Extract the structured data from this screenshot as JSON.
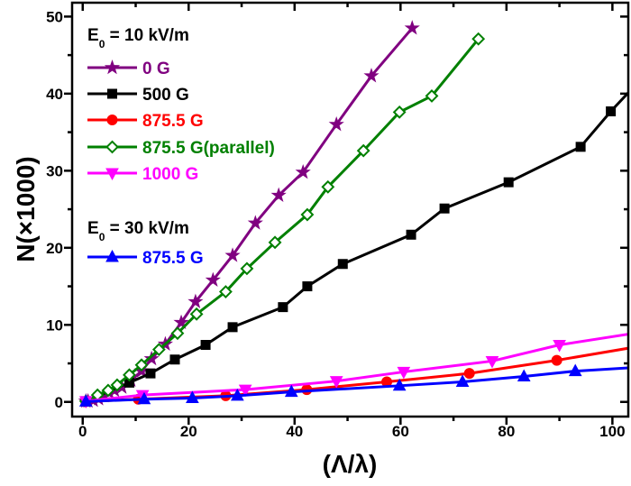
{
  "chart_data": {
    "type": "line",
    "xlabel": "(Λ/λ)",
    "ylabel": "N(×1000)",
    "xlim": [
      -2,
      103
    ],
    "ylim": [
      -1.9,
      51.8
    ],
    "xticks": [
      0,
      20,
      40,
      60,
      80,
      100
    ],
    "yticks": [
      0,
      10,
      20,
      30,
      40,
      50
    ],
    "grid": false,
    "legend_position": "top-left",
    "legend_groups": [
      {
        "title_main": "E",
        "title_sub": "0",
        "title_rest": " = 10 kV/m",
        "series_indices": [
          0,
          1,
          2,
          3,
          4
        ]
      },
      {
        "title_main": "E",
        "title_sub": "0",
        "title_rest": " = 30 kV/m",
        "series_indices": [
          5
        ]
      }
    ],
    "series": [
      {
        "name": "0 G",
        "color": "#800080",
        "marker": "star",
        "filled": true,
        "x": [
          0.6,
          1,
          2,
          3,
          4,
          5,
          6,
          7.4,
          9.1,
          11.1,
          13.0,
          15.6,
          18.6,
          21.3,
          24.6,
          28.3,
          32.6,
          37.0,
          41.6,
          47.9,
          54.5,
          62.2
        ],
        "y": [
          0.1,
          0.1,
          0.2,
          0.4,
          0.8,
          1.2,
          1.5,
          1.9,
          2.8,
          4.0,
          5.6,
          7.5,
          10.3,
          13.0,
          15.8,
          19.0,
          23.2,
          26.8,
          29.8,
          36.0,
          42.3,
          48.5
        ]
      },
      {
        "name": "500 G",
        "color": "#000000",
        "marker": "square",
        "filled": true,
        "x": [
          0.6,
          8.8,
          12.8,
          17.4,
          23.2,
          28.3,
          37.8,
          42.4,
          49.1,
          62.0,
          68.3,
          80.4,
          94.0,
          99.7,
          105
        ],
        "y": [
          0.1,
          2.5,
          3.7,
          5.5,
          7.4,
          9.7,
          12.3,
          15.0,
          17.9,
          21.7,
          25.1,
          28.5,
          33.1,
          37.7,
          41.6
        ]
      },
      {
        "name": "875.5 G",
        "color": "#ff0000",
        "marker": "circle",
        "filled": true,
        "x": [
          0.6,
          10.5,
          27.0,
          42.3,
          57.4,
          73.0,
          89.5,
          105
        ],
        "y": [
          0.05,
          0.35,
          0.8,
          1.6,
          2.6,
          3.7,
          5.4,
          7.2
        ]
      },
      {
        "name": "875.5 G(parallel)",
        "color": "#008000",
        "marker": "diamond",
        "filled": false,
        "x": [
          0.6,
          2.8,
          4.8,
          6.5,
          8.8,
          11.1,
          14.4,
          17.9,
          21.5,
          27.0,
          31.0,
          36.3,
          42.4,
          46.3,
          53.0,
          59.8,
          65.9,
          74.7
        ],
        "y": [
          0.1,
          0.9,
          1.5,
          2.2,
          3.5,
          4.8,
          6.8,
          8.9,
          11.4,
          14.3,
          17.3,
          20.7,
          24.3,
          27.9,
          32.6,
          37.6,
          39.7,
          47.1
        ]
      },
      {
        "name": "1000 G",
        "color": "#ff00ff",
        "marker": "triangle-down",
        "filled": true,
        "x": [
          0.6,
          11.3,
          30.7,
          47.9,
          60.6,
          77.3,
          90.0,
          105
        ],
        "y": [
          0.1,
          0.9,
          1.6,
          2.7,
          3.9,
          5.3,
          7.4,
          9.0
        ]
      },
      {
        "name": "875.5 G",
        "color": "#0000ff",
        "marker": "triangle-up",
        "filled": true,
        "x": [
          0.6,
          11.6,
          20.7,
          29.2,
          39.4,
          59.8,
          71.7,
          83.3,
          93.0,
          105
        ],
        "y": [
          0.05,
          0.35,
          0.5,
          0.8,
          1.3,
          2.1,
          2.6,
          3.3,
          4.0,
          4.5
        ]
      }
    ]
  }
}
